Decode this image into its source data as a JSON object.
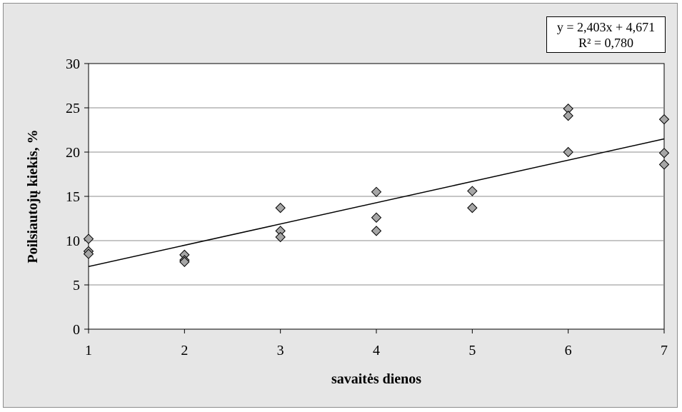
{
  "chart_data": {
    "type": "scatter",
    "title": "",
    "xlabel": "savaitės dienos",
    "ylabel": "Poilsiautojų kiekis, %",
    "xlim": [
      1,
      7
    ],
    "ylim": [
      0,
      30
    ],
    "x_ticks": [
      "1",
      "2",
      "3",
      "4",
      "5",
      "6",
      "7"
    ],
    "y_ticks": [
      "0",
      "5",
      "10",
      "15",
      "20",
      "25",
      "30"
    ],
    "grid": "horizontal",
    "marker": "diamond",
    "marker_color": "#a6a6a6",
    "points": [
      {
        "x": 1,
        "y": 10.2
      },
      {
        "x": 1,
        "y": 8.8
      },
      {
        "x": 1,
        "y": 8.5
      },
      {
        "x": 2,
        "y": 8.4
      },
      {
        "x": 2,
        "y": 7.8
      },
      {
        "x": 2,
        "y": 7.6
      },
      {
        "x": 3,
        "y": 13.7
      },
      {
        "x": 3,
        "y": 11.1
      },
      {
        "x": 3,
        "y": 10.4
      },
      {
        "x": 4,
        "y": 15.5
      },
      {
        "x": 4,
        "y": 12.6
      },
      {
        "x": 4,
        "y": 11.1
      },
      {
        "x": 5,
        "y": 15.6
      },
      {
        "x": 5,
        "y": 13.7
      },
      {
        "x": 6,
        "y": 24.9
      },
      {
        "x": 6,
        "y": 24.1
      },
      {
        "x": 6,
        "y": 20.0
      },
      {
        "x": 7,
        "y": 23.7
      },
      {
        "x": 7,
        "y": 19.9
      },
      {
        "x": 7,
        "y": 18.6
      }
    ],
    "trendline": {
      "slope": 2.403,
      "intercept": 4.671,
      "equation_label": "y = 2,403x + 4,671",
      "r2_label": "R² = 0,780"
    }
  }
}
